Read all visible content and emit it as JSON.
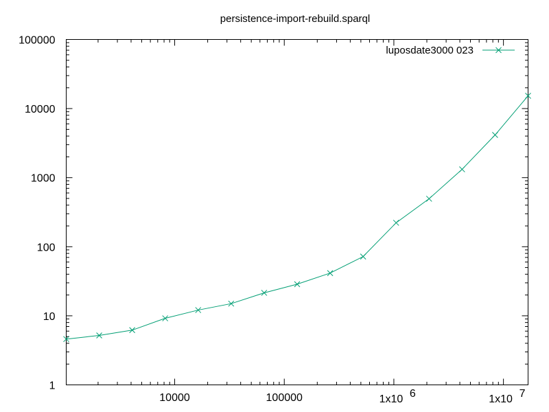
{
  "chart_data": {
    "type": "line",
    "title": "persistence-import-rebuild.sparql",
    "xlabel": "",
    "ylabel": "",
    "x_scale": "log",
    "y_scale": "log",
    "xlim": [
      1024,
      16777216
    ],
    "ylim": [
      1,
      100000
    ],
    "grid": false,
    "legend_position": "top-right",
    "x_ticks": [
      {
        "value": 10000,
        "label": "10000"
      },
      {
        "value": 100000,
        "label": "100000"
      },
      {
        "value": 1000000,
        "label": "1x10",
        "exp": "6"
      },
      {
        "value": 10000000,
        "label": "1x10",
        "exp": "7"
      }
    ],
    "y_ticks": [
      {
        "value": 1,
        "label": "1"
      },
      {
        "value": 10,
        "label": "10"
      },
      {
        "value": 100,
        "label": "100"
      },
      {
        "value": 1000,
        "label": "1000"
      },
      {
        "value": 10000,
        "label": "10000"
      },
      {
        "value": 100000,
        "label": "100000"
      }
    ],
    "series": [
      {
        "name": "luposdate3000 023",
        "color": "#009e73",
        "marker": "x",
        "x": [
          1024,
          2048,
          4096,
          8192,
          16384,
          32768,
          65536,
          131072,
          262144,
          524288,
          1048576,
          2097152,
          4194304,
          8388608,
          16777216
        ],
        "y": [
          4.6,
          5.2,
          6.2,
          9.2,
          12.1,
          15.0,
          21.5,
          28.7,
          41.5,
          72,
          222,
          495,
          1320,
          4150,
          15300
        ]
      }
    ]
  }
}
